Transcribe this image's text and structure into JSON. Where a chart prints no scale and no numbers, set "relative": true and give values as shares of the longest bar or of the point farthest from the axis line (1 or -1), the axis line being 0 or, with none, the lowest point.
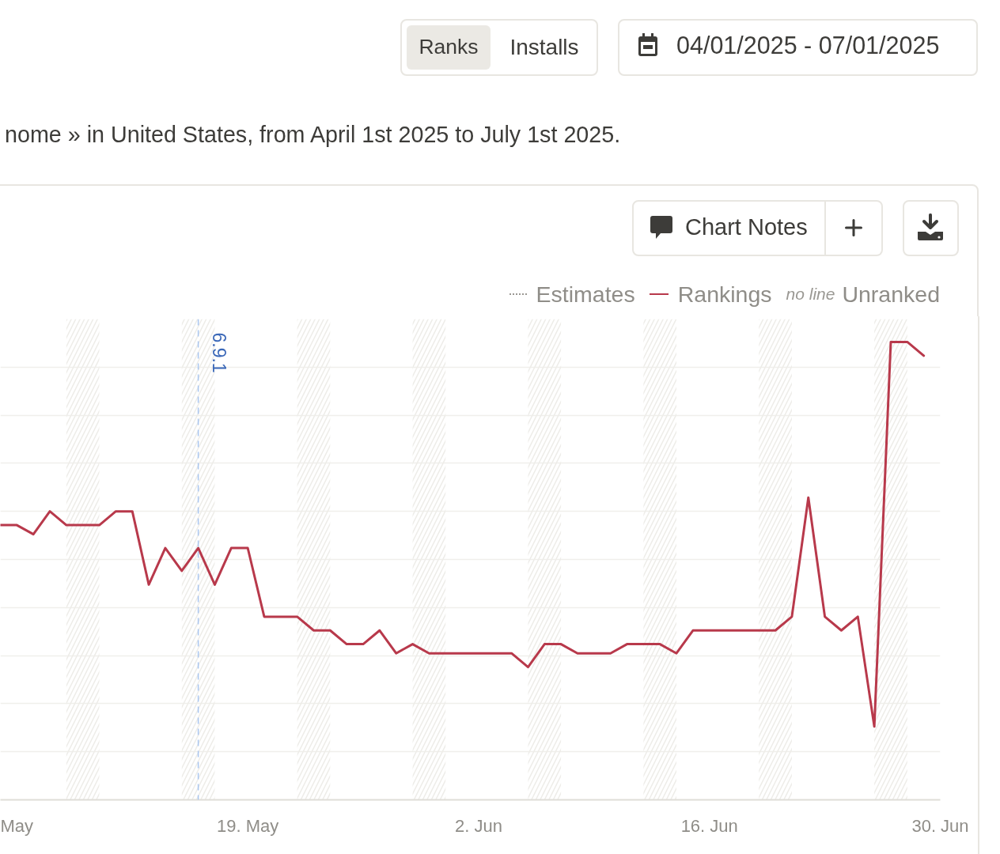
{
  "chart_data": {
    "type": "line",
    "relative": true,
    "subtitle": "nome » in United States, from April 1st 2025 to July 1st 2025.",
    "annotations": [
      "Ranks",
      "Installs",
      "04/01/2025 - 07/01/2025",
      "Chart Notes",
      "no line"
    ],
    "x": [
      "2025-05-04",
      "2025-05-05",
      "2025-05-06",
      "2025-05-07",
      "2025-05-08",
      "2025-05-09",
      "2025-05-10",
      "2025-05-11",
      "2025-05-12",
      "2025-05-13",
      "2025-05-14",
      "2025-05-15",
      "2025-05-16",
      "2025-05-17",
      "2025-05-18",
      "2025-05-19",
      "2025-05-20",
      "2025-05-21",
      "2025-05-22",
      "2025-05-23",
      "2025-05-24",
      "2025-05-25",
      "2025-05-26",
      "2025-05-27",
      "2025-05-28",
      "2025-05-29",
      "2025-05-30",
      "2025-05-31",
      "2025-06-01",
      "2025-06-02",
      "2025-06-03",
      "2025-06-04",
      "2025-06-05",
      "2025-06-06",
      "2025-06-07",
      "2025-06-08",
      "2025-06-09",
      "2025-06-10",
      "2025-06-11",
      "2025-06-12",
      "2025-06-13",
      "2025-06-14",
      "2025-06-15",
      "2025-06-16",
      "2025-06-17",
      "2025-06-18",
      "2025-06-19",
      "2025-06-20",
      "2025-06-21",
      "2025-06-22",
      "2025-06-23",
      "2025-06-24",
      "2025-06-25",
      "2025-06-26",
      "2025-06-27",
      "2025-06-28",
      "2025-06-29"
    ],
    "series": [
      {
        "name": "Estimates",
        "color": "#9a9893",
        "line_style": "dotted",
        "values": [
          null,
          null,
          null,
          null,
          null,
          null,
          null,
          null,
          null,
          null,
          null,
          null,
          null,
          null,
          null,
          null,
          null,
          null,
          null,
          null,
          null,
          null,
          null,
          null,
          null,
          null,
          null,
          null,
          null,
          null,
          null,
          null,
          null,
          null,
          null,
          null,
          null,
          null,
          null,
          null,
          null,
          null,
          null,
          null,
          null,
          null,
          null,
          null,
          null,
          null,
          null,
          null,
          null,
          null,
          null,
          null,
          null
        ]
      },
      {
        "name": "Rankings",
        "color": "#b8394b",
        "line_style": "solid",
        "values": [
          0.6,
          0.6,
          0.58,
          0.63,
          0.6,
          0.6,
          0.6,
          0.63,
          0.63,
          0.47,
          0.55,
          0.5,
          0.55,
          0.47,
          0.55,
          0.55,
          0.4,
          0.4,
          0.4,
          0.37,
          0.37,
          0.34,
          0.34,
          0.37,
          0.32,
          0.34,
          0.32,
          0.32,
          0.32,
          0.32,
          0.32,
          0.32,
          0.29,
          0.34,
          0.34,
          0.32,
          0.32,
          0.32,
          0.34,
          0.34,
          0.34,
          0.32,
          0.37,
          0.37,
          0.37,
          0.37,
          0.37,
          0.37,
          0.4,
          0.66,
          0.4,
          0.37,
          0.4,
          0.16,
          1,
          1,
          0.97
        ]
      },
      {
        "name": "Unranked",
        "color": "#9a9893",
        "values": [
          null,
          null,
          null,
          null,
          null,
          null,
          null,
          null,
          null,
          null,
          null,
          null,
          null,
          null,
          null,
          null,
          null,
          null,
          null,
          null,
          null,
          null,
          null,
          null,
          null,
          null,
          null,
          null,
          null,
          null,
          null,
          null,
          null,
          null,
          null,
          null,
          null,
          null,
          null,
          null,
          null,
          null,
          null,
          null,
          null,
          null,
          null,
          null,
          null,
          null,
          null,
          null,
          null,
          null,
          null,
          null,
          null
        ]
      }
    ],
    "xlim": [
      "2025-05-04",
      "2025-06-30"
    ],
    "xticks": [
      {
        "value": "2025-05-05",
        "label": "May"
      },
      {
        "value": "2025-05-19",
        "label": "19. May"
      },
      {
        "value": "2025-06-02",
        "label": "2. Jun"
      },
      {
        "value": "2025-06-16",
        "label": "16. Jun"
      },
      {
        "value": "2025-06-30",
        "label": "30. Jun"
      }
    ],
    "ref_lines": [
      {
        "axis": "x",
        "value": "2025-05-16",
        "label": "6.9.1",
        "color": "#a9c6f0",
        "line_style": "dashed"
      }
    ],
    "bands": [
      {
        "axis": "x",
        "from": "2025-05-08",
        "to": "2025-05-10",
        "color": "#eeede9"
      },
      {
        "axis": "x",
        "from": "2025-05-15",
        "to": "2025-05-17",
        "color": "#eeede9"
      },
      {
        "axis": "x",
        "from": "2025-05-22",
        "to": "2025-05-24",
        "color": "#eeede9"
      },
      {
        "axis": "x",
        "from": "2025-05-29",
        "to": "2025-05-31",
        "color": "#eeede9"
      },
      {
        "axis": "x",
        "from": "2025-06-05",
        "to": "2025-06-07",
        "color": "#eeede9"
      },
      {
        "axis": "x",
        "from": "2025-06-12",
        "to": "2025-06-14",
        "color": "#eeede9"
      },
      {
        "axis": "x",
        "from": "2025-06-19",
        "to": "2025-06-21",
        "color": "#eeede9"
      },
      {
        "axis": "x",
        "from": "2025-06-26",
        "to": "2025-06-28",
        "color": "#eeede9"
      }
    ],
    "grid": "y",
    "legend": "top right"
  }
}
